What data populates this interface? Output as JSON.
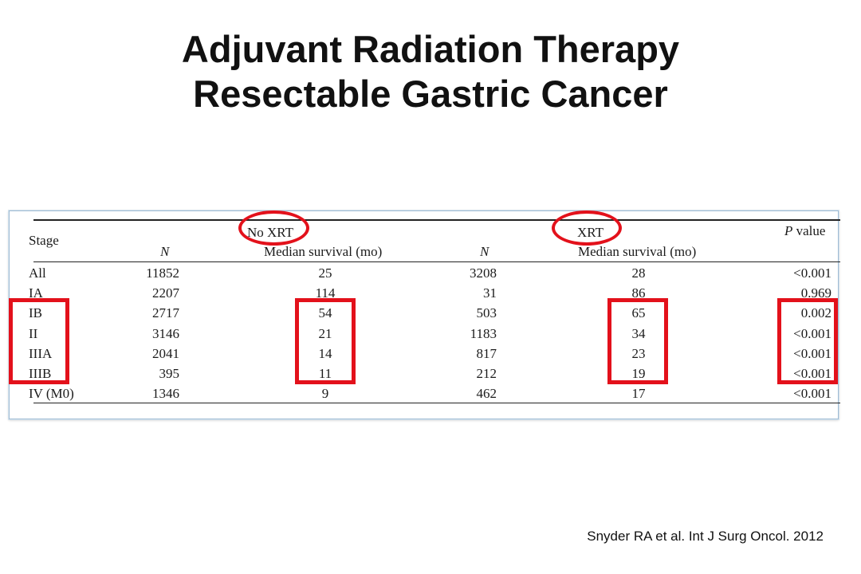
{
  "title": {
    "line1": "Adjuvant Radiation Therapy",
    "line2": "Resectable Gastric Cancer"
  },
  "table": {
    "header": {
      "stage": "Stage",
      "group_no_xrt": "No XRT",
      "group_xrt": "XRT",
      "p_value_prefix": "P",
      "p_value_suffix": "value",
      "n": "N",
      "median_survival": "Median survival (mo)"
    },
    "rows": [
      {
        "stage": "All",
        "no_xrt_n": "11852",
        "no_xrt_median": "25",
        "xrt_n": "3208",
        "xrt_median": "28",
        "p_value": "<0.001"
      },
      {
        "stage": "IA",
        "no_xrt_n": "2207",
        "no_xrt_median": "114",
        "xrt_n": "31",
        "xrt_median": "86",
        "p_value": "0.969"
      },
      {
        "stage": "IB",
        "no_xrt_n": "2717",
        "no_xrt_median": "54",
        "xrt_n": "503",
        "xrt_median": "65",
        "p_value": "0.002"
      },
      {
        "stage": "II",
        "no_xrt_n": "3146",
        "no_xrt_median": "21",
        "xrt_n": "1183",
        "xrt_median": "34",
        "p_value": "<0.001"
      },
      {
        "stage": "IIIA",
        "no_xrt_n": "2041",
        "no_xrt_median": "14",
        "xrt_n": "817",
        "xrt_median": "23",
        "p_value": "<0.001"
      },
      {
        "stage": "IIIB",
        "no_xrt_n": "395",
        "no_xrt_median": "11",
        "xrt_n": "212",
        "xrt_median": "19",
        "p_value": "<0.001"
      },
      {
        "stage": "IV (M0)",
        "no_xrt_n": "1346",
        "no_xrt_median": "9",
        "xrt_n": "462",
        "xrt_median": "17",
        "p_value": "<0.001"
      }
    ]
  },
  "annotations": {
    "highlight_color": "#e3111b",
    "circled_headers": [
      "No XRT",
      "XRT"
    ],
    "boxed_stages": [
      "IB",
      "II",
      "IIIA",
      "IIIB"
    ],
    "boxed_columns": [
      "Stage",
      "No XRT Median survival (mo)",
      "XRT Median survival (mo)",
      "P value"
    ]
  },
  "citation": "Snyder RA et al. Int J Surg Oncol. 2012"
}
